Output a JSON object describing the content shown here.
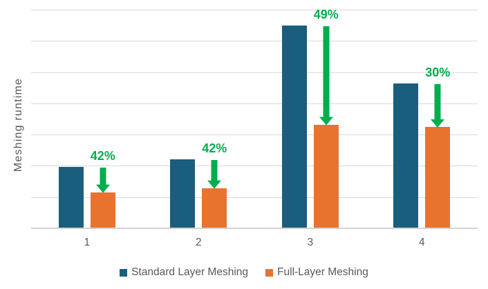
{
  "chart_data": {
    "type": "bar",
    "title": "",
    "ylabel": "Meshing runtime",
    "xlabel": "",
    "categories": [
      "1",
      "2",
      "3",
      "4"
    ],
    "series": [
      {
        "name": "Standard Layer Meshing",
        "color": "#1A5E7E",
        "values": [
          1.94,
          2.18,
          6.46,
          4.61
        ]
      },
      {
        "name": "Full-Layer Meshing",
        "color": "#E8732E",
        "values": [
          1.13,
          1.26,
          3.29,
          3.22
        ]
      }
    ],
    "annotations": [
      {
        "category": "1",
        "label": "42%"
      },
      {
        "category": "2",
        "label": "42%"
      },
      {
        "category": "3",
        "label": "49%"
      },
      {
        "category": "4",
        "label": "30%"
      }
    ],
    "annotation_color": "#00AE4D",
    "ylim": [
      0,
      7
    ],
    "y_tick_labels": [],
    "grid": true,
    "gridline_color": "#D9D9D9",
    "axis_line_color": "#D2D2D2",
    "text_color": "#595959",
    "legend_position": "bottom"
  }
}
